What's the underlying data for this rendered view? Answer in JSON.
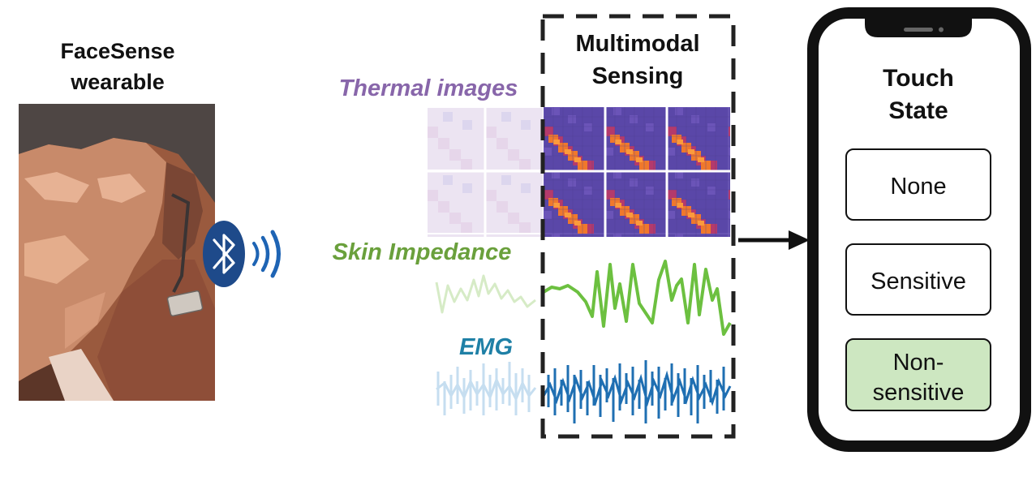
{
  "wearable": {
    "title_line1": "FaceSense",
    "title_line2": "wearable",
    "photo_icon": "face-photo-icon",
    "bluetooth_icon": "bluetooth-icon"
  },
  "modalities": {
    "thermal_label": "Thermal images",
    "impedance_label": "Skin Impedance",
    "emg_label": "EMG"
  },
  "sensing_box": {
    "line1": "Multimodal",
    "line2": "Sensing"
  },
  "phone": {
    "title_line1": "Touch",
    "title_line2": "State",
    "states": [
      {
        "line1": "None",
        "line2": "",
        "highlighted": false
      },
      {
        "line1": "Sensitive",
        "line2": "",
        "highlighted": false
      },
      {
        "line1": "Non-",
        "line2": "sensitive",
        "highlighted": true
      }
    ]
  },
  "colors": {
    "thermal_label": "#8866aa",
    "impedance_label": "#6aa03c",
    "emg_label": "#1f80a6",
    "impedance_line": "#6cc040",
    "emg_line": "#1f6fb2",
    "bluetooth": "#1e4a8a",
    "highlight_fill": "#cde7c1"
  }
}
